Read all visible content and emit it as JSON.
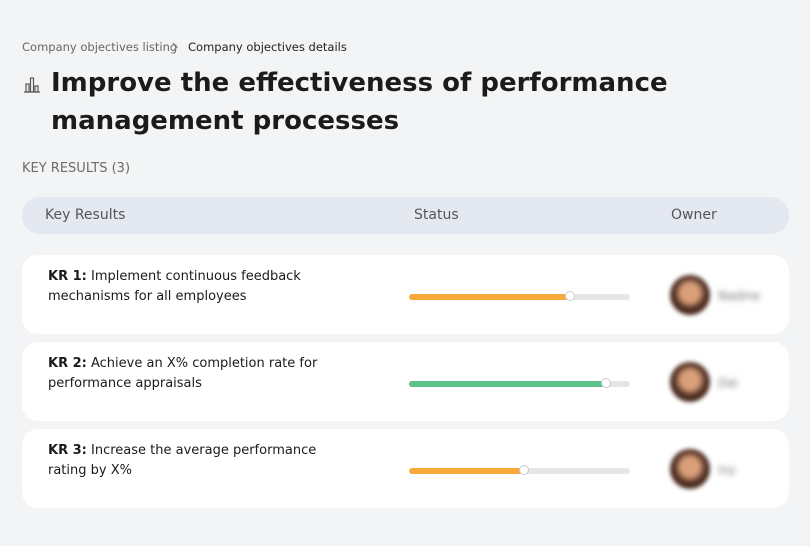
{
  "breadcrumb": {
    "items": [
      "Company objectives listing",
      "Company objectives details"
    ]
  },
  "header": {
    "title": "Improve the effectiveness of performance management processes"
  },
  "section_label": "KEY RESULTS (3)",
  "table": {
    "columns": [
      "Key Results",
      "Status",
      "Owner"
    ]
  },
  "key_results": [
    {
      "label": "KR 1:",
      "text": "Implement continuous feedback mechanisms for all employees",
      "progress": 73,
      "color": "#f9a93a",
      "owner": "Nadine"
    },
    {
      "label": "KR 2:",
      "text": "Achieve an X% completion rate for performance appraisals",
      "progress": 89,
      "color": "#5cc48a",
      "owner": "Dai"
    },
    {
      "label": "KR 3:",
      "text": "Increase the average performance rating by X%",
      "progress": 52,
      "color": "#f9a93a",
      "owner": "Ivy"
    }
  ]
}
